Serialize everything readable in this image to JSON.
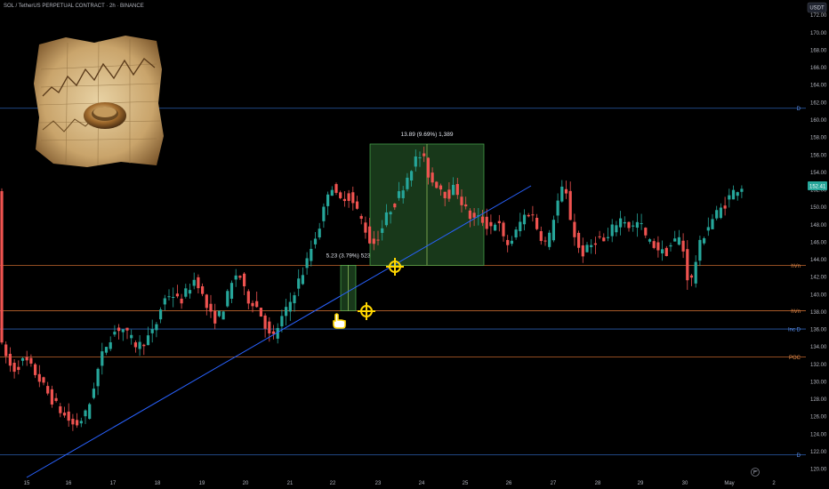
{
  "header": {
    "title": "SOL / TetherUS PERPETUAL CONTRACT · 2h · BINANCE"
  },
  "currency_badge": "USDT",
  "colors": {
    "up": "#26a69a",
    "down": "#ef5350",
    "trendline": "#2962ff",
    "level_blue": "#2a5dad",
    "level_orange": "#c1662e",
    "measure": "#4caf50"
  },
  "chart_data": {
    "type": "candlestick",
    "title": "SOL / TetherUS PERPETUAL CONTRACT · 2h · BINANCE",
    "y_axis_labels": [
      "172.00",
      "170.00",
      "168.00",
      "166.00",
      "164.00",
      "162.00",
      "160.00",
      "158.00",
      "156.00",
      "154.00",
      "152.00",
      "150.00",
      "148.00",
      "146.00",
      "144.00",
      "142.00",
      "140.00",
      "138.00",
      "136.00",
      "134.00",
      "132.00",
      "130.00",
      "128.00",
      "126.00",
      "124.00",
      "122.00",
      "120.00"
    ],
    "x_axis_labels": [
      "15",
      "16",
      "17",
      "18",
      "19",
      "20",
      "21",
      "22",
      "23",
      "24",
      "25",
      "26",
      "27",
      "28",
      "29",
      "30",
      "May",
      "2"
    ],
    "ylim": [
      119.5,
      173.5
    ],
    "last_price": "152.41",
    "levels": [
      {
        "label": "D",
        "price": 161.3,
        "style": "blue"
      },
      {
        "label": "hVn",
        "price": 143.3,
        "style": "orange"
      },
      {
        "label": "hVn",
        "price": 138.1,
        "style": "orange"
      },
      {
        "label": "Inc D",
        "price": 136.0,
        "style": "blue"
      },
      {
        "label": "POC",
        "price": 132.8,
        "style": "orange"
      },
      {
        "label": "D",
        "price": 121.6,
        "style": "blue"
      }
    ],
    "measurements": [
      {
        "label": "5.23 (3.79%) 523",
        "from": 138.1,
        "to": 143.3
      },
      {
        "label": "13.89 (9.69%) 1,389",
        "from": 143.3,
        "to": 157.2
      }
    ],
    "price_path": [
      [
        0,
        134.5
      ],
      [
        3,
        131.2
      ],
      [
        6,
        132.5
      ],
      [
        9,
        130.6
      ],
      [
        12,
        128.2
      ],
      [
        15,
        126.3
      ],
      [
        18,
        124.8
      ],
      [
        21,
        126.5
      ],
      [
        23,
        130.5
      ],
      [
        25,
        133.8
      ],
      [
        27,
        135.5
      ],
      [
        29,
        136.3
      ],
      [
        31,
        135.0
      ],
      [
        33,
        134.0
      ],
      [
        35,
        134.8
      ],
      [
        37,
        135.8
      ],
      [
        39,
        139.2
      ],
      [
        41,
        140.2
      ],
      [
        43,
        139.0
      ],
      [
        45,
        140.5
      ],
      [
        47,
        142.0
      ],
      [
        49,
        139.0
      ],
      [
        51,
        137.0
      ],
      [
        53,
        137.8
      ],
      [
        55,
        140.5
      ],
      [
        57,
        142.8
      ],
      [
        59,
        139.5
      ],
      [
        61,
        139.0
      ],
      [
        63,
        137.2
      ],
      [
        65,
        134.5
      ],
      [
        67,
        136.8
      ],
      [
        69,
        138.5
      ],
      [
        71,
        141.0
      ],
      [
        73,
        143.0
      ],
      [
        75,
        146.0
      ],
      [
        77,
        148.5
      ],
      [
        79,
        153.0
      ],
      [
        81,
        150.5
      ],
      [
        83,
        151.5
      ],
      [
        85,
        150.0
      ],
      [
        87,
        148.0
      ],
      [
        89,
        145.5
      ],
      [
        91,
        147.0
      ],
      [
        93,
        149.5
      ],
      [
        95,
        150.8
      ],
      [
        97,
        153.0
      ],
      [
        99,
        155.2
      ],
      [
        101,
        156.0
      ],
      [
        103,
        153.0
      ],
      [
        105,
        152.5
      ],
      [
        107,
        151.2
      ],
      [
        109,
        152.3
      ],
      [
        111,
        150.0
      ],
      [
        113,
        148.5
      ],
      [
        115,
        148.7
      ],
      [
        117,
        147.6
      ],
      [
        119,
        148.5
      ],
      [
        121,
        145.5
      ],
      [
        123,
        146.5
      ],
      [
        125,
        148.8
      ],
      [
        127,
        149.5
      ],
      [
        129,
        147.0
      ],
      [
        131,
        145.5
      ],
      [
        133,
        150.0
      ],
      [
        135,
        152.5
      ],
      [
        137,
        147.5
      ],
      [
        139,
        144.5
      ],
      [
        141,
        145.3
      ],
      [
        143,
        146.5
      ],
      [
        145,
        145.8
      ],
      [
        147,
        148.0
      ],
      [
        149,
        148.8
      ],
      [
        151,
        147.5
      ],
      [
        153,
        148.3
      ],
      [
        155,
        146.0
      ],
      [
        157,
        145.5
      ],
      [
        159,
        144.5
      ],
      [
        161,
        146.0
      ],
      [
        163,
        146.5
      ],
      [
        165,
        140.5
      ],
      [
        167,
        145.0
      ],
      [
        169,
        147.5
      ],
      [
        171,
        149.0
      ],
      [
        173,
        150.0
      ],
      [
        175,
        151.5
      ],
      [
        177,
        152.4
      ]
    ],
    "grid": false
  }
}
